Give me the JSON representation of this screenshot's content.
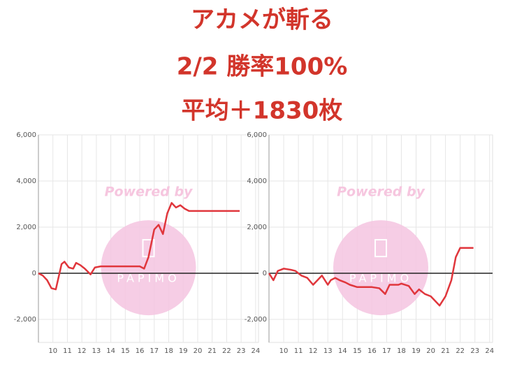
{
  "header": {
    "lines": [
      "アカメが斬る",
      "2/2 勝率100%",
      "平均＋1830枚"
    ]
  },
  "chart_data": [
    {
      "type": "line",
      "watermark": [
        "Powered by",
        "PAPIMO"
      ],
      "x": [
        9.0,
        9.3,
        9.6,
        9.9,
        10.2,
        10.6,
        10.8,
        11.1,
        11.4,
        11.6,
        11.9,
        12.2,
        12.6,
        12.9,
        13.3,
        14,
        15,
        16,
        16.3,
        16.6,
        17,
        17.3,
        17.6,
        17.9,
        18.2,
        18.5,
        18.8,
        19.1,
        19.4,
        20,
        21,
        22,
        22.9
      ],
      "series": [
        {
          "color": "#e0363c",
          "values": [
            0,
            -100,
            -300,
            -650,
            -700,
            400,
            500,
            250,
            200,
            450,
            350,
            200,
            -50,
            250,
            300,
            300,
            300,
            300,
            200,
            700,
            1900,
            2100,
            1700,
            2600,
            3050,
            2850,
            2950,
            2800,
            2700,
            2700,
            2700,
            2700,
            2700
          ]
        }
      ],
      "xlim": [
        9,
        24.2
      ],
      "xticks": [
        10,
        11,
        12,
        13,
        14,
        15,
        16,
        17,
        18,
        19,
        20,
        21,
        22,
        23,
        24
      ],
      "ylim": [
        -3000,
        6000
      ],
      "yticks": [
        {
          "value": -2000,
          "label": "-2,000"
        },
        0,
        {
          "value": 2000,
          "label": "2,000"
        },
        {
          "value": 4000,
          "label": "4,000"
        },
        {
          "value": 6000,
          "label": "6,000"
        }
      ],
      "grid": true
    },
    {
      "type": "line",
      "watermark": [
        "Powered by",
        "PAPIMO"
      ],
      "x": [
        9.0,
        9.3,
        9.6,
        10,
        10.5,
        10.8,
        11.2,
        11.6,
        12,
        12.3,
        12.6,
        13,
        13.2,
        13.5,
        13.8,
        14.2,
        14.5,
        15,
        16,
        16.5,
        16.9,
        17.2,
        17.8,
        18,
        18.5,
        18.9,
        19.2,
        19.6,
        20,
        20.3,
        20.6,
        21,
        21.4,
        21.7,
        22,
        22.9
      ],
      "series": [
        {
          "color": "#e0363c",
          "values": [
            0,
            -300,
            100,
            200,
            150,
            100,
            -100,
            -200,
            -500,
            -300,
            -100,
            -500,
            -300,
            -200,
            -300,
            -400,
            -500,
            -600,
            -600,
            -650,
            -900,
            -500,
            -500,
            -450,
            -550,
            -900,
            -700,
            -900,
            -1000,
            -1200,
            -1400,
            -1000,
            -300,
            700,
            1100,
            1100
          ]
        }
      ],
      "xlim": [
        9,
        24.2
      ],
      "xticks": [
        10,
        11,
        12,
        13,
        14,
        15,
        16,
        17,
        18,
        19,
        20,
        21,
        22,
        23,
        24
      ],
      "ylim": [
        -3000,
        6000
      ],
      "yticks": [
        {
          "value": -2000,
          "label": "-2,000"
        },
        0,
        {
          "value": 2000,
          "label": "2,000"
        },
        {
          "value": 4000,
          "label": "4,000"
        },
        {
          "value": 6000,
          "label": "6,000"
        }
      ],
      "grid": true
    }
  ]
}
